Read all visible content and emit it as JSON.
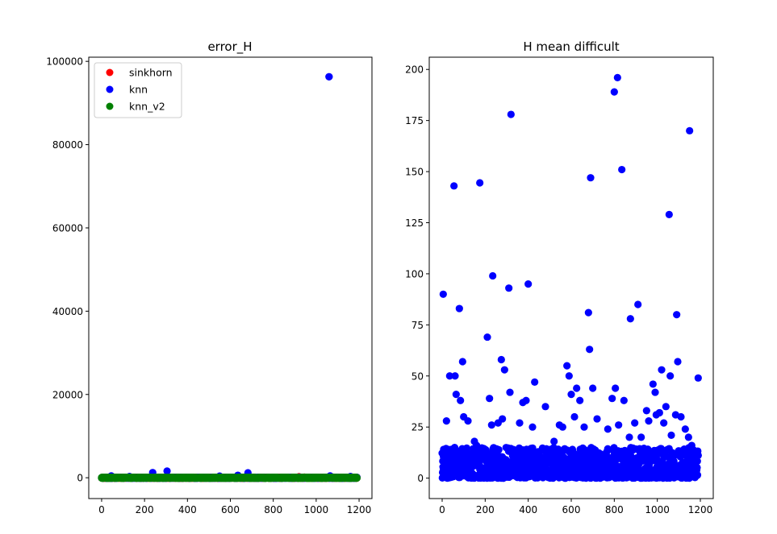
{
  "chart_data": [
    {
      "type": "scatter",
      "title": "error_H",
      "xlabel": "",
      "ylabel": "",
      "xlim": [
        -60,
        1260
      ],
      "ylim": [
        -5000,
        101000
      ],
      "xticks": [
        0,
        200,
        400,
        600,
        800,
        1000,
        1200
      ],
      "yticks": [
        0,
        20000,
        40000,
        60000,
        80000,
        100000
      ],
      "grid": false,
      "legend": {
        "placement": "top-left",
        "entries": [
          {
            "name": "sinkhorn",
            "color": "#ff0000"
          },
          {
            "name": "knn",
            "color": "#0000ff"
          },
          {
            "name": "knn_v2",
            "color": "#008000"
          }
        ]
      },
      "series": [
        {
          "name": "sinkhorn",
          "color": "#ff0000",
          "x_range": [
            0,
            1190
          ],
          "baseline_y": 0,
          "n_points": 1190,
          "notable_points": [
            {
              "x": 920,
              "y": 250
            },
            {
              "x": 945,
              "y": 150
            },
            {
              "x": 1080,
              "y": 120
            }
          ]
        },
        {
          "name": "knn",
          "color": "#0000ff",
          "x_range": [
            0,
            1190
          ],
          "baseline_y": 0,
          "n_points": 1190,
          "notable_points": [
            {
              "x": 1060,
              "y": 96300
            },
            {
              "x": 305,
              "y": 1600
            },
            {
              "x": 238,
              "y": 1250
            },
            {
              "x": 682,
              "y": 1200
            },
            {
              "x": 45,
              "y": 450
            },
            {
              "x": 130,
              "y": 300
            },
            {
              "x": 550,
              "y": 400
            },
            {
              "x": 635,
              "y": 600
            },
            {
              "x": 1065,
              "y": 450
            },
            {
              "x": 1160,
              "y": 300
            }
          ]
        },
        {
          "name": "knn_v2",
          "color": "#008000",
          "x_range": [
            0,
            1190
          ],
          "baseline_y": 0,
          "n_points": 1190,
          "notable_points": []
        }
      ]
    },
    {
      "type": "scatter",
      "title": "H mean difficult",
      "xlabel": "",
      "ylabel": "",
      "xlim": [
        -60,
        1260
      ],
      "ylim": [
        -10,
        206
      ],
      "xticks": [
        0,
        200,
        400,
        600,
        800,
        1000,
        1200
      ],
      "yticks": [
        0,
        25,
        50,
        75,
        100,
        125,
        150,
        175,
        200
      ],
      "grid": false,
      "series": [
        {
          "name": "",
          "color": "#0000ff",
          "x_range": [
            0,
            1190
          ],
          "n_points": 1190,
          "bulk_y_range": [
            0,
            15
          ],
          "points": [
            [
              5,
              90
            ],
            [
              55,
              143
            ],
            [
              80,
              83
            ],
            [
              95,
              57
            ],
            [
              175,
              144.5
            ],
            [
              210,
              69
            ],
            [
              235,
              99
            ],
            [
              275,
              58
            ],
            [
              290,
              53
            ],
            [
              310,
              93
            ],
            [
              320,
              178
            ],
            [
              400,
              95
            ],
            [
              430,
              47
            ],
            [
              580,
              55
            ],
            [
              590,
              50
            ],
            [
              625,
              44
            ],
            [
              680,
              81
            ],
            [
              685,
              63
            ],
            [
              690,
              147
            ],
            [
              700,
              44
            ],
            [
              800,
              189
            ],
            [
              815,
              196
            ],
            [
              835,
              151
            ],
            [
              875,
              78
            ],
            [
              910,
              85
            ],
            [
              950,
              33
            ],
            [
              980,
              46
            ],
            [
              990,
              42
            ],
            [
              1020,
              53
            ],
            [
              1040,
              35
            ],
            [
              1055,
              129
            ],
            [
              1060,
              50
            ],
            [
              1090,
              80
            ],
            [
              1095,
              57
            ],
            [
              1150,
              170
            ],
            [
              1190,
              49
            ],
            [
              20,
              28
            ],
            [
              35,
              50
            ],
            [
              60,
              50
            ],
            [
              65,
              41
            ],
            [
              85,
              38
            ],
            [
              100,
              30
            ],
            [
              120,
              28
            ],
            [
              150,
              18
            ],
            [
              160,
              16
            ],
            [
              220,
              39
            ],
            [
              230,
              26
            ],
            [
              260,
              27
            ],
            [
              280,
              29
            ],
            [
              315,
              42
            ],
            [
              360,
              27
            ],
            [
              375,
              37
            ],
            [
              390,
              38
            ],
            [
              420,
              25
            ],
            [
              480,
              35
            ],
            [
              520,
              18
            ],
            [
              545,
              26
            ],
            [
              560,
              25
            ],
            [
              600,
              41
            ],
            [
              615,
              30
            ],
            [
              640,
              38
            ],
            [
              660,
              25
            ],
            [
              720,
              29
            ],
            [
              770,
              24
            ],
            [
              790,
              39
            ],
            [
              805,
              44
            ],
            [
              820,
              26
            ],
            [
              845,
              38
            ],
            [
              870,
              20
            ],
            [
              895,
              27
            ],
            [
              925,
              20
            ],
            [
              960,
              28
            ],
            [
              995,
              31
            ],
            [
              1010,
              32
            ],
            [
              1030,
              27
            ],
            [
              1065,
              21
            ],
            [
              1085,
              31
            ],
            [
              1110,
              30
            ],
            [
              1130,
              24
            ],
            [
              1145,
              20
            ],
            [
              1160,
              16
            ],
            [
              1175,
              11
            ]
          ]
        }
      ]
    }
  ]
}
